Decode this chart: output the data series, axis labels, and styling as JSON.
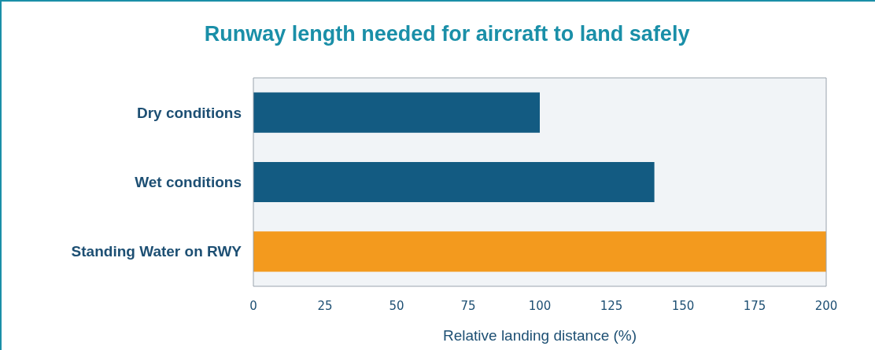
{
  "chart_data": {
    "type": "bar",
    "orientation": "horizontal",
    "title": "Runway length needed for aircraft to land safely",
    "xlabel": "Relative landing distance (%)",
    "categories": [
      "Dry conditions",
      "Wet conditions",
      "Standing Water on RWY"
    ],
    "values": [
      100,
      140,
      200
    ],
    "colors": [
      "#135b82",
      "#135b82",
      "#f39a1e"
    ],
    "xlim": [
      0,
      200
    ],
    "xticks": [
      0,
      25,
      50,
      75,
      100,
      125,
      150,
      175,
      200
    ],
    "grid": false,
    "legend": false
  }
}
